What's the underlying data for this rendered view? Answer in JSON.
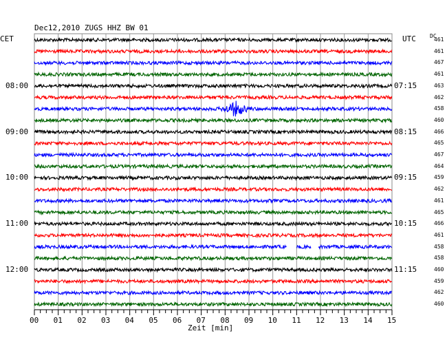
{
  "chart_data": {
    "type": "line",
    "header": "Dec12,2010   ZUGS HHZ BW 01",
    "left_axis_title": "CET",
    "right_axis_title": "UTC",
    "dc_title": "DC",
    "xlabel": "Zeit [min]",
    "x_range": [
      0,
      15
    ],
    "x_ticks": [
      "00",
      "01",
      "02",
      "03",
      "04",
      "05",
      "06",
      "07",
      "08",
      "09",
      "10",
      "11",
      "12",
      "13",
      "14",
      "15"
    ],
    "x_grid": true,
    "trace_colors": [
      "#000000",
      "#ff0000",
      "#0000ff",
      "#006400"
    ],
    "rows": [
      {
        "cet": "",
        "utc": "",
        "dc": "461"
      },
      {
        "cet": "",
        "utc": "",
        "dc": "461"
      },
      {
        "cet": "",
        "utc": "",
        "dc": "467"
      },
      {
        "cet": "",
        "utc": "",
        "dc": "461"
      },
      {
        "cet": "08:00",
        "utc": "07:15",
        "dc": "463"
      },
      {
        "cet": "",
        "utc": "",
        "dc": "462"
      },
      {
        "cet": "",
        "utc": "",
        "dc": "458"
      },
      {
        "cet": "",
        "utc": "",
        "dc": "460"
      },
      {
        "cet": "09:00",
        "utc": "08:15",
        "dc": "466"
      },
      {
        "cet": "",
        "utc": "",
        "dc": "465"
      },
      {
        "cet": "",
        "utc": "",
        "dc": "467"
      },
      {
        "cet": "",
        "utc": "",
        "dc": "464"
      },
      {
        "cet": "10:00",
        "utc": "09:15",
        "dc": "459"
      },
      {
        "cet": "",
        "utc": "",
        "dc": "462"
      },
      {
        "cet": "",
        "utc": "",
        "dc": "461"
      },
      {
        "cet": "",
        "utc": "",
        "dc": "465"
      },
      {
        "cet": "11:00",
        "utc": "10:15",
        "dc": "466"
      },
      {
        "cet": "",
        "utc": "",
        "dc": "461"
      },
      {
        "cet": "",
        "utc": "",
        "dc": "458"
      },
      {
        "cet": "",
        "utc": "",
        "dc": "458"
      },
      {
        "cet": "12:00",
        "utc": "11:15",
        "dc": "460"
      },
      {
        "cet": "",
        "utc": "",
        "dc": "459"
      },
      {
        "cet": "",
        "utc": "",
        "dc": "462"
      },
      {
        "cet": "",
        "utc": "",
        "dc": "460"
      }
    ],
    "events": [
      {
        "row": 6,
        "x_start_min": 7.5,
        "x_end_min": 9.2,
        "kind": "seismic event"
      }
    ],
    "gaps": [
      {
        "row": 18,
        "x_start_min": 10.6,
        "x_end_min": 11.0
      },
      {
        "row": 18,
        "x_start_min": 11.6,
        "x_end_min": 11.9
      }
    ]
  }
}
